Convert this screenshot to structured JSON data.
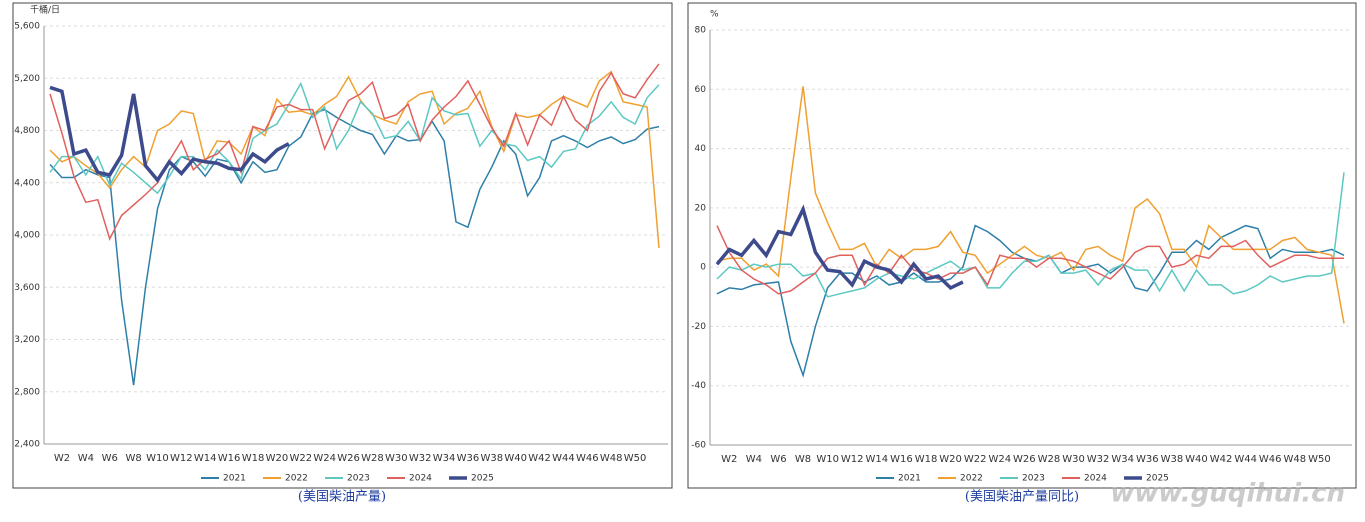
{
  "chart_data": [
    {
      "type": "line",
      "unit": "千桶/日",
      "caption": "(美国柴油产量)",
      "categories": [
        null,
        "W2",
        null,
        "W4",
        null,
        "W6",
        null,
        "W8",
        null,
        "W10",
        null,
        "W12",
        null,
        "W14",
        null,
        "W16",
        null,
        "W18",
        null,
        "W20",
        null,
        "W22",
        null,
        "W24",
        null,
        "W26",
        null,
        "W28",
        null,
        "W30",
        null,
        "W32",
        null,
        "W34",
        null,
        "W36",
        null,
        "W38",
        null,
        "W40",
        null,
        "W42",
        null,
        "W44",
        null,
        "W46",
        null,
        "W48",
        null,
        "W50",
        null,
        null
      ],
      "ylim": [
        2400,
        5600
      ],
      "yticks": [
        {
          "value": 2400,
          "label": "2,400"
        },
        {
          "value": 2800,
          "label": "2,800"
        },
        {
          "value": 3200,
          "label": "3,200"
        },
        {
          "value": 3600,
          "label": "3,600"
        },
        {
          "value": 4000,
          "label": "4,000"
        },
        {
          "value": 4400,
          "label": "4,400"
        },
        {
          "value": 4800,
          "label": "4,800"
        },
        {
          "value": 5200,
          "label": "5,200"
        },
        {
          "value": 5600,
          "label": "5,600"
        }
      ],
      "grid": true,
      "series": [
        {
          "name": "2021",
          "color": "#2e7fa8",
          "values": [
            4540,
            4440,
            4440,
            4500,
            4460,
            4440,
            3500,
            2850,
            3600,
            4200,
            4500,
            4600,
            4560,
            4450,
            4580,
            4560,
            4400,
            4560,
            4480,
            4500,
            4680,
            4750,
            4930,
            4960,
            4900,
            4850,
            4800,
            4770,
            4620,
            4760,
            4720,
            4730,
            4870,
            4720,
            4100,
            4060,
            4350,
            4520,
            4720,
            4620,
            4300,
            4440,
            4720,
            4760,
            4720,
            4670,
            4720,
            4750,
            4700,
            4730,
            4810,
            4830
          ]
        },
        {
          "name": "2022",
          "color": "#f0a030",
          "values": [
            4650,
            4560,
            4600,
            4530,
            4470,
            4360,
            4500,
            4600,
            4520,
            4800,
            4850,
            4950,
            4930,
            4560,
            4720,
            4710,
            4620,
            4830,
            4760,
            5040,
            4940,
            4950,
            4920,
            5000,
            5060,
            5210,
            5030,
            4920,
            4880,
            4850,
            5020,
            5080,
            5100,
            4850,
            4930,
            4970,
            5100,
            4830,
            4640,
            4920,
            4900,
            4920,
            5000,
            5060,
            5020,
            4980,
            5180,
            5250,
            5020,
            5000,
            4980,
            3900
          ]
        },
        {
          "name": "2023",
          "color": "#5cc8c2",
          "values": [
            4480,
            4600,
            4600,
            4460,
            4600,
            4380,
            4550,
            4480,
            4400,
            4320,
            4450,
            4600,
            4600,
            4500,
            4650,
            4560,
            4430,
            4740,
            4800,
            4850,
            5000,
            5160,
            4900,
            4980,
            4660,
            4800,
            5020,
            4930,
            4740,
            4760,
            4870,
            4720,
            5050,
            4950,
            4920,
            4930,
            4680,
            4800,
            4700,
            4680,
            4570,
            4600,
            4520,
            4640,
            4660,
            4840,
            4910,
            5020,
            4900,
            4850,
            5050,
            5150
          ]
        },
        {
          "name": "2024",
          "color": "#e0605e",
          "values": [
            5080,
            4780,
            4450,
            4250,
            4270,
            3970,
            4150,
            4230,
            4310,
            4400,
            4570,
            4720,
            4500,
            4580,
            4620,
            4720,
            4480,
            4830,
            4800,
            4980,
            5000,
            4960,
            4960,
            4660,
            4860,
            5030,
            5080,
            5170,
            4890,
            4920,
            5000,
            4720,
            4880,
            4980,
            5060,
            5180,
            5000,
            4820,
            4680,
            4930,
            4690,
            4920,
            4840,
            5060,
            4880,
            4800,
            5100,
            5240,
            5080,
            5050,
            5190,
            5310
          ]
        },
        {
          "name": "2025",
          "color": "#3d4a8c",
          "values": [
            5130,
            5100,
            4620,
            4650,
            4480,
            4460,
            4610,
            5080,
            4530,
            4420,
            4560,
            4470,
            4580,
            4560,
            4550,
            4510,
            4500,
            4620,
            4560,
            4650,
            4700,
            null,
            null,
            null,
            null,
            null,
            null,
            null,
            null,
            null,
            null,
            null,
            null,
            null,
            null,
            null,
            null,
            null,
            null,
            null,
            null,
            null,
            null,
            null,
            null,
            null,
            null,
            null,
            null,
            null,
            null,
            null
          ]
        }
      ]
    },
    {
      "type": "line",
      "unit": "%",
      "caption": "(美国柴油产量同比)",
      "watermark": "www.guqihui.cn",
      "categories": [
        null,
        "W2",
        null,
        "W4",
        null,
        "W6",
        null,
        "W8",
        null,
        "W10",
        null,
        "W12",
        null,
        "W14",
        null,
        "W16",
        null,
        "W18",
        null,
        "W20",
        null,
        "W22",
        null,
        "W24",
        null,
        "W26",
        null,
        "W28",
        null,
        "W30",
        null,
        "W32",
        null,
        "W34",
        null,
        "W36",
        null,
        "W38",
        null,
        "W40",
        null,
        "W42",
        null,
        "W44",
        null,
        "W46",
        null,
        "W48",
        null,
        "W50",
        null,
        null
      ],
      "ylim": [
        -60,
        80
      ],
      "yticks": [
        -60,
        -40,
        -20,
        0,
        20,
        40,
        60,
        80
      ],
      "grid": true,
      "series": [
        {
          "name": "2021",
          "color": "#2e7fa8",
          "values": [
            -9,
            -7,
            -7.5,
            -6,
            -5.5,
            -5,
            -25,
            -36.5,
            -20,
            -7,
            -2,
            -2,
            -5,
            -3,
            -6,
            -5,
            -2,
            -5,
            -5,
            -4,
            0,
            14,
            12,
            9,
            5,
            3,
            2,
            4,
            -2,
            0,
            0,
            1,
            -2,
            1,
            -7,
            -8,
            -2,
            5,
            5,
            9,
            6,
            10,
            12,
            14,
            13,
            3,
            6,
            5,
            5,
            5,
            6,
            4
          ]
        },
        {
          "name": "2022",
          "color": "#f0a030",
          "values": [
            2,
            3,
            3,
            -1,
            1,
            -3,
            30,
            61,
            25,
            15,
            6,
            6,
            8,
            0,
            6,
            3,
            6,
            6,
            7,
            12,
            5,
            4,
            -2,
            1,
            4,
            7,
            4,
            3,
            5,
            -1,
            6,
            7,
            4,
            2,
            20,
            23,
            18,
            6,
            6,
            0,
            14,
            10,
            6,
            6,
            6,
            6,
            9,
            10,
            6,
            5,
            4,
            -19
          ]
        },
        {
          "name": "2023",
          "color": "#5cc8c2",
          "values": [
            -4,
            0,
            -1,
            1,
            0,
            1,
            1,
            -3,
            -2,
            -10,
            -9,
            -8,
            -7,
            -4,
            -2,
            -3,
            -4,
            -2,
            0,
            2,
            -1,
            0,
            -7,
            -7,
            -2,
            2,
            2,
            4,
            -2,
            -2,
            -1,
            -6,
            -1,
            1,
            -1,
            -1,
            -8,
            -1,
            -8,
            -1,
            -6,
            -6,
            -9,
            -8,
            -6,
            -3,
            -5,
            -4,
            -3,
            -3,
            -2,
            32
          ]
        },
        {
          "name": "2024",
          "color": "#e0605e",
          "values": [
            14,
            5,
            -1,
            -4,
            -6,
            -9,
            -8,
            -5,
            -2,
            3,
            4,
            4,
            -6,
            1,
            -2,
            4,
            -1,
            -2,
            -4,
            -2,
            -2,
            0,
            -6,
            4,
            3,
            3,
            0,
            3,
            3,
            2,
            0,
            -2,
            -4,
            0,
            5,
            7,
            7,
            0,
            1,
            4,
            3,
            7,
            7,
            9,
            4,
            0,
            2,
            4,
            4,
            3,
            3,
            3
          ]
        },
        {
          "name": "2025",
          "color": "#3d4a8c",
          "values": [
            1,
            6,
            4,
            9,
            4,
            12,
            11,
            19.5,
            5,
            -1,
            -1.5,
            -6,
            2,
            0,
            -1,
            -5,
            1,
            -4,
            -3,
            -7,
            -5,
            null,
            null,
            null,
            null,
            null,
            null,
            null,
            null,
            null,
            null,
            null,
            null,
            null,
            null,
            null,
            null,
            null,
            null,
            null,
            null,
            null,
            null,
            null,
            null,
            null,
            null,
            null,
            null,
            null,
            null,
            null
          ]
        }
      ]
    }
  ]
}
